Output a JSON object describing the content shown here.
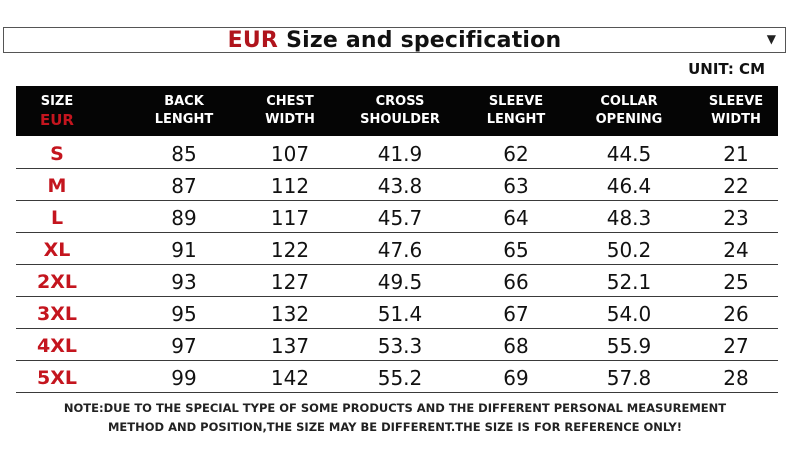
{
  "title": {
    "eur": "EUR",
    "text": "Size and specification",
    "dropdown_icon": "chevron-down-icon"
  },
  "unit": "UNIT: CM",
  "headers": [
    {
      "line1": "SIZE",
      "line2": "EUR"
    },
    {
      "line1": "BACK",
      "line2": "LENGHT"
    },
    {
      "line1": "CHEST",
      "line2": "WIDTH"
    },
    {
      "line1": "CROSS",
      "line2": "SHOULDER"
    },
    {
      "line1": "SLEEVE",
      "line2": "LENGHT"
    },
    {
      "line1": "COLLAR",
      "line2": "OPENING"
    },
    {
      "line1": "SLEEVE",
      "line2": "WIDTH"
    }
  ],
  "rows": [
    [
      "S",
      "85",
      "107",
      "41.9",
      "62",
      "44.5",
      "21"
    ],
    [
      "M",
      "87",
      "112",
      "43.8",
      "63",
      "46.4",
      "22"
    ],
    [
      "L",
      "89",
      "117",
      "45.7",
      "64",
      "48.3",
      "23"
    ],
    [
      "XL",
      "91",
      "122",
      "47.6",
      "65",
      "50.2",
      "24"
    ],
    [
      "2XL",
      "93",
      "127",
      "49.5",
      "66",
      "52.1",
      "25"
    ],
    [
      "3XL",
      "95",
      "132",
      "51.4",
      "67",
      "54.0",
      "26"
    ],
    [
      "4XL",
      "97",
      "137",
      "53.3",
      "68",
      "55.9",
      "27"
    ],
    [
      "5XL",
      "99",
      "142",
      "55.2",
      "69",
      "57.8",
      "28"
    ]
  ],
  "note": {
    "line1": "NOTE:DUE TO THE SPECIAL TYPE OF SOME PRODUCTS AND THE DIFFERENT PERSONAL MEASUREMENT",
    "line2": "METHOD AND POSITION,THE SIZE MAY BE DIFFERENT.THE SIZE IS FOR REFERENCE ONLY!"
  },
  "colors": {
    "accent": "#c4151e",
    "header_bg": "#050505"
  }
}
